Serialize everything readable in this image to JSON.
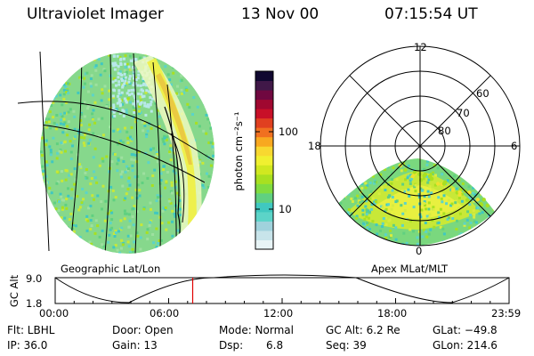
{
  "header": {
    "instrument": "Ultraviolet Imager",
    "date": "13 Nov 00",
    "time": "07:15:54 UT"
  },
  "left_panel": {
    "caption": "Geographic Lat/Lon"
  },
  "right_panel": {
    "caption": "Apex MLat/MLT",
    "mlt_labels": {
      "top": "12",
      "left": "18",
      "right": "6",
      "bottom": "0"
    },
    "lat_labels": [
      "60",
      "70",
      "80"
    ]
  },
  "colorbar": {
    "unit_label": "photon cm⁻²s⁻¹",
    "tick_100": "100",
    "tick_10": "10",
    "colors": [
      "#e8f4f6",
      "#c8e4ea",
      "#a0d2dc",
      "#5cd4c8",
      "#40c8c0",
      "#60d080",
      "#80dc40",
      "#a8e020",
      "#d0e820",
      "#f0f030",
      "#f8d830",
      "#f8a820",
      "#f07020",
      "#e04020",
      "#c81028",
      "#a00830",
      "#700840",
      "#401848",
      "#100830"
    ]
  },
  "timeline": {
    "axis_label": "GC Alt",
    "y_max": "9.0",
    "y_min": "1.8",
    "ticks": [
      "00:00",
      "06:00",
      "12:00",
      "18:00",
      "23:59"
    ],
    "current_time_fraction": 0.303,
    "marker_color": "#e00000"
  },
  "status": {
    "flt": "Flt: LBHL",
    "ip": "IP: 36.0",
    "door": "Door: Open",
    "gain": "Gain: 13",
    "mode": "Mode: Normal",
    "dsp_label": "Dsp:",
    "dsp_value": "6.8",
    "gc_alt": "GC Alt: 6.2 Re",
    "seq": "Seq: 39",
    "glat": "GLat: −49.8",
    "glon": "GLon: 214.6"
  }
}
